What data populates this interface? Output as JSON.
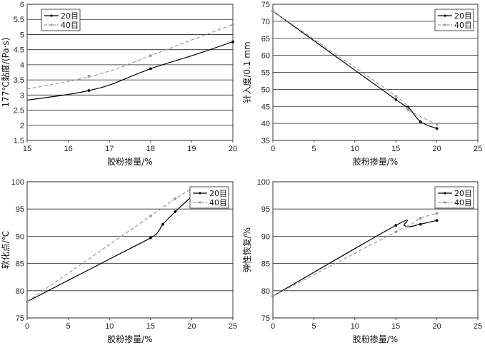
{
  "chart_data": [
    {
      "type": "line",
      "xlabel": "胶粉掺量/%",
      "ylabel": "177℃黏度/(Pa·s)",
      "xlim": [
        15,
        20
      ],
      "ylim": [
        1.5,
        6
      ],
      "xticks": [
        "15",
        "16",
        "17",
        "18",
        "19",
        "20"
      ],
      "yticks": [
        "1.5",
        "2",
        "2.5",
        "3",
        "3.5",
        "4",
        "4.5",
        "5",
        "5.5",
        "6"
      ],
      "grid": "horizontal",
      "legend": "top-left",
      "series": [
        {
          "name": "20目",
          "style": "solid",
          "color": "#000000",
          "points": [
            [
              15,
              2.83
            ],
            [
              16,
              3.02
            ],
            [
              16.5,
              3.15
            ],
            [
              17,
              3.33
            ],
            [
              18,
              3.87
            ],
            [
              19,
              4.3
            ],
            [
              20,
              4.76
            ]
          ],
          "markers": [
            [
              16.5,
              3.15
            ],
            [
              18,
              3.87
            ],
            [
              20,
              4.76
            ]
          ]
        },
        {
          "name": "40目",
          "style": "dashed",
          "color": "#999999",
          "points": [
            [
              15,
              3.2
            ],
            [
              16,
              3.45
            ],
            [
              17,
              3.79
            ],
            [
              18,
              4.3
            ],
            [
              19,
              4.82
            ],
            [
              20,
              5.33
            ]
          ],
          "markers": [
            [
              16.5,
              3.62
            ],
            [
              18,
              4.3
            ],
            [
              20,
              5.33
            ]
          ]
        }
      ]
    },
    {
      "type": "line",
      "xlabel": "胶粉掺量/%",
      "ylabel": "针入度/0.1 mm",
      "xlim": [
        0,
        25
      ],
      "ylim": [
        35,
        75
      ],
      "xticks": [
        "0",
        "5",
        "10",
        "15",
        "20",
        "25"
      ],
      "yticks": [
        "35",
        "40",
        "45",
        "50",
        "55",
        "60",
        "65",
        "70",
        "75"
      ],
      "grid": "horizontal",
      "legend": "top-right",
      "series": [
        {
          "name": "20目",
          "style": "solid",
          "color": "#000000",
          "points": [
            [
              0,
              73
            ],
            [
              15,
              47
            ],
            [
              16.5,
              44.8
            ],
            [
              18,
              40.5
            ],
            [
              20,
              38.5
            ]
          ],
          "markers": [
            [
              0,
              73
            ],
            [
              15,
              47
            ],
            [
              16.5,
              44.8
            ],
            [
              18,
              40.5
            ],
            [
              20,
              38.5
            ]
          ]
        },
        {
          "name": "40目",
          "style": "dashed",
          "color": "#999999",
          "points": [
            [
              0,
              73
            ],
            [
              15,
              48
            ],
            [
              16.5,
              44
            ],
            [
              20,
              39.7
            ]
          ],
          "markers": [
            [
              0,
              73
            ],
            [
              15,
              48
            ],
            [
              16.5,
              44
            ],
            [
              20,
              39.7
            ]
          ]
        }
      ]
    },
    {
      "type": "line",
      "xlabel": "胶粉掺量/%",
      "ylabel": "软化点/℃",
      "xlim": [
        0,
        25
      ],
      "ylim": [
        75,
        100
      ],
      "xticks": [
        "0",
        "5",
        "10",
        "15",
        "20",
        "25"
      ],
      "yticks": [
        "75",
        "80",
        "85",
        "90",
        "95",
        "100"
      ],
      "grid": "horizontal",
      "legend": "top-right",
      "series": [
        {
          "name": "20目",
          "style": "solid",
          "color": "#000000",
          "points": [
            [
              0,
              78
            ],
            [
              10,
              85.8
            ],
            [
              15,
              89.7
            ],
            [
              16,
              91
            ],
            [
              16.5,
              92.2
            ],
            [
              18,
              94.5
            ],
            [
              20,
              97.3
            ]
          ],
          "markers": [
            [
              0,
              78
            ],
            [
              15,
              89.7
            ],
            [
              16.5,
              92.2
            ],
            [
              18,
              94.5
            ],
            [
              20,
              97.3
            ]
          ]
        },
        {
          "name": "40目",
          "style": "dashed",
          "color": "#999999",
          "points": [
            [
              0,
              78
            ],
            [
              15,
              93.7
            ],
            [
              18,
              96.9
            ],
            [
              20,
              98.7
            ]
          ],
          "markers": [
            [
              0,
              78
            ],
            [
              15,
              93.7
            ],
            [
              18,
              96.9
            ],
            [
              20,
              98.7
            ]
          ]
        }
      ]
    },
    {
      "type": "line",
      "xlabel": "胶粉掺量/%",
      "ylabel": "弹性恢复/%",
      "xlim": [
        0,
        25
      ],
      "ylim": [
        75,
        100
      ],
      "xticks": [
        "0",
        "5",
        "10",
        "15",
        "20",
        "25"
      ],
      "yticks": [
        "75",
        "80",
        "85",
        "90",
        "95",
        "100"
      ],
      "grid": "horizontal",
      "legend": "top-right",
      "series": [
        {
          "name": "20目",
          "style": "solid",
          "color": "#000000",
          "points": [
            [
              0,
              79
            ],
            [
              15,
              92
            ],
            [
              16,
              92
            ],
            [
              16.5,
              91.7
            ],
            [
              18,
              92.2
            ],
            [
              20,
              92.9
            ]
          ],
          "markers": [
            [
              0,
              79
            ],
            [
              15,
              92
            ],
            [
              18,
              92.2
            ],
            [
              20,
              92.9
            ]
          ]
        },
        {
          "name": "40目",
          "style": "dashed",
          "color": "#999999",
          "points": [
            [
              0,
              79
            ],
            [
              15,
              90.8
            ],
            [
              16.5,
              91.8
            ],
            [
              18,
              93.3
            ],
            [
              20,
              94.2
            ]
          ],
          "markers": [
            [
              0,
              79
            ],
            [
              15,
              90.8
            ],
            [
              16.5,
              91.8
            ],
            [
              18,
              93.3
            ],
            [
              20,
              94.2
            ]
          ]
        }
      ]
    }
  ]
}
